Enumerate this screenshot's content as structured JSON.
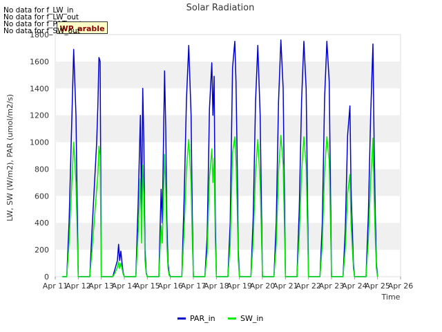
{
  "title": "Solar Radiation",
  "messages": [
    "No data for f_LW_in",
    "No data for f_LW_out",
    "No data for f_PAR_out",
    "No data for f_SW_out"
  ],
  "badge_label": "WP_arable",
  "chart_data": {
    "type": "line",
    "title": "Solar Radiation",
    "xlabel": "Time",
    "ylabel": "LW, SW (W/m2), PAR (umol/m2/s)",
    "xlim": [
      11,
      26
    ],
    "ylim": [
      0,
      1800
    ],
    "x_ticks": [
      "Apr 11",
      "Apr 12",
      "Apr 13",
      "Apr 14",
      "Apr 15",
      "Apr 16",
      "Apr 17",
      "Apr 18",
      "Apr 19",
      "Apr 20",
      "Apr 21",
      "Apr 22",
      "Apr 23",
      "Apr 24",
      "Apr 25",
      "Apr 26"
    ],
    "y_ticks": [
      0,
      200,
      400,
      600,
      800,
      1000,
      1200,
      1400,
      1600,
      1800
    ],
    "grid": "horizontal bands",
    "legend": "bottom-center",
    "series": [
      {
        "name": "PAR_in",
        "color": "#0000cc",
        "x": [
          11.3,
          11.5,
          11.6,
          11.8,
          11.9,
          12.0,
          12.5,
          12.6,
          12.8,
          12.85,
          12.9,
          12.95,
          13.0,
          13.5,
          13.6,
          13.7,
          13.75,
          13.8,
          13.85,
          13.9,
          13.95,
          14.0,
          14.5,
          14.6,
          14.7,
          14.75,
          14.8,
          14.85,
          14.9,
          14.95,
          15.0,
          15.5,
          15.6,
          15.65,
          15.7,
          15.75,
          15.8,
          15.85,
          15.9,
          15.95,
          16.0,
          16.5,
          16.6,
          16.7,
          16.8,
          16.9,
          16.95,
          17.0,
          17.5,
          17.6,
          17.7,
          17.8,
          17.85,
          17.9,
          17.95,
          18.0,
          18.5,
          18.6,
          18.7,
          18.8,
          18.85,
          18.9,
          18.95,
          19.0,
          19.5,
          19.6,
          19.7,
          19.8,
          19.9,
          20.0,
          20.5,
          20.6,
          20.7,
          20.8,
          20.9,
          21.0,
          21.5,
          21.6,
          21.7,
          21.8,
          21.9,
          22.0,
          22.5,
          22.6,
          22.7,
          22.8,
          22.9,
          23.0,
          23.5,
          23.6,
          23.7,
          23.8,
          23.85,
          23.9,
          23.95,
          24.0,
          24.5,
          24.6,
          24.7,
          24.8,
          24.85,
          24.9,
          24.95,
          25.0
        ],
        "y": [
          0,
          0,
          400,
          1690,
          1200,
          0,
          0,
          350,
          1000,
          1270,
          1630,
          1600,
          0,
          0,
          60,
          120,
          240,
          120,
          190,
          100,
          30,
          0,
          0,
          540,
          1200,
          450,
          1400,
          1000,
          200,
          30,
          0,
          0,
          650,
          400,
          1000,
          1530,
          1100,
          400,
          100,
          20,
          0,
          0,
          600,
          1320,
          1720,
          1200,
          500,
          0,
          0,
          300,
          1250,
          1590,
          1200,
          1490,
          450,
          0,
          0,
          400,
          1550,
          1750,
          1450,
          920,
          200,
          0,
          0,
          450,
          1300,
          1720,
          1200,
          0,
          0,
          400,
          1300,
          1760,
          1400,
          0,
          0,
          500,
          1310,
          1750,
          1400,
          0,
          0,
          400,
          1330,
          1750,
          1450,
          0,
          0,
          350,
          1050,
          1270,
          650,
          380,
          100,
          0,
          0,
          450,
          1200,
          1730,
          1000,
          500,
          100,
          0
        ]
      },
      {
        "name": "SW_in",
        "color": "#00ee00",
        "x": [
          11.3,
          11.5,
          11.6,
          11.8,
          11.9,
          12.0,
          12.5,
          12.6,
          12.8,
          12.85,
          12.9,
          12.95,
          13.0,
          13.5,
          13.6,
          13.7,
          13.75,
          13.8,
          13.85,
          13.9,
          13.95,
          14.0,
          14.5,
          14.6,
          14.7,
          14.75,
          14.8,
          14.85,
          14.9,
          14.95,
          15.0,
          15.5,
          15.6,
          15.65,
          15.7,
          15.75,
          15.8,
          15.85,
          15.9,
          15.95,
          16.0,
          16.5,
          16.6,
          16.7,
          16.8,
          16.9,
          16.95,
          17.0,
          17.5,
          17.6,
          17.7,
          17.8,
          17.85,
          17.9,
          17.95,
          18.0,
          18.5,
          18.6,
          18.7,
          18.8,
          18.85,
          18.9,
          18.95,
          19.0,
          19.5,
          19.6,
          19.7,
          19.8,
          19.9,
          20.0,
          20.5,
          20.6,
          20.7,
          20.8,
          20.9,
          21.0,
          21.5,
          21.6,
          21.7,
          21.8,
          21.9,
          22.0,
          22.5,
          22.6,
          22.7,
          22.8,
          22.9,
          23.0,
          23.5,
          23.6,
          23.7,
          23.8,
          23.85,
          23.9,
          23.95,
          24.0,
          24.5,
          24.6,
          24.7,
          24.8,
          24.85,
          24.9,
          24.95,
          25.0
        ],
        "y": [
          0,
          0,
          250,
          1000,
          700,
          0,
          0,
          200,
          650,
          760,
          970,
          900,
          0,
          0,
          30,
          70,
          110,
          60,
          100,
          60,
          20,
          0,
          0,
          320,
          730,
          250,
          830,
          600,
          120,
          20,
          0,
          0,
          380,
          250,
          600,
          910,
          650,
          230,
          60,
          10,
          0,
          0,
          350,
          800,
          1020,
          700,
          300,
          0,
          0,
          180,
          740,
          950,
          700,
          880,
          270,
          0,
          0,
          240,
          920,
          1040,
          860,
          550,
          120,
          0,
          0,
          270,
          780,
          1020,
          700,
          0,
          0,
          240,
          780,
          1050,
          830,
          0,
          0,
          300,
          780,
          1040,
          830,
          0,
          0,
          240,
          790,
          1040,
          860,
          0,
          0,
          210,
          620,
          760,
          390,
          230,
          60,
          0,
          0,
          270,
          710,
          1030,
          600,
          300,
          60,
          0
        ]
      }
    ]
  }
}
